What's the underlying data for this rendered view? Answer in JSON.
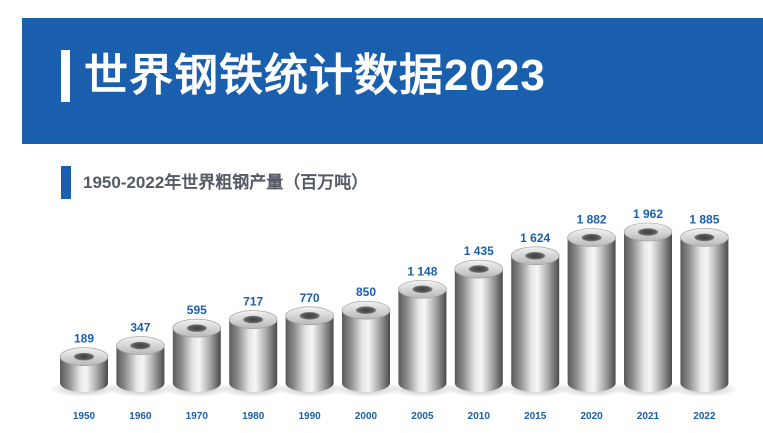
{
  "header": {
    "title": "世界钢铁统计数据2023"
  },
  "chart_data": {
    "type": "bar",
    "title": "1950-2022年世界粗钢产量（百万吨）",
    "categories": [
      "1950",
      "1960",
      "1970",
      "1980",
      "1990",
      "2000",
      "2005",
      "2010",
      "2015",
      "2020",
      "2021",
      "2022"
    ],
    "values": [
      189,
      347,
      595,
      717,
      770,
      850,
      1148,
      1435,
      1624,
      1882,
      1962,
      1885
    ],
    "value_labels": [
      "189",
      "347",
      "595",
      "717",
      "770",
      "850",
      "1 148",
      "1 435",
      "1 624",
      "1 882",
      "1 962",
      "1 885"
    ],
    "ylim": [
      0,
      1962
    ],
    "grid": false,
    "legend": "none"
  },
  "colors": {
    "banner": "#1a5fae",
    "value_label": "#1a5fae",
    "axis_label": "#1a5fae",
    "subtitle": "#555b66"
  }
}
